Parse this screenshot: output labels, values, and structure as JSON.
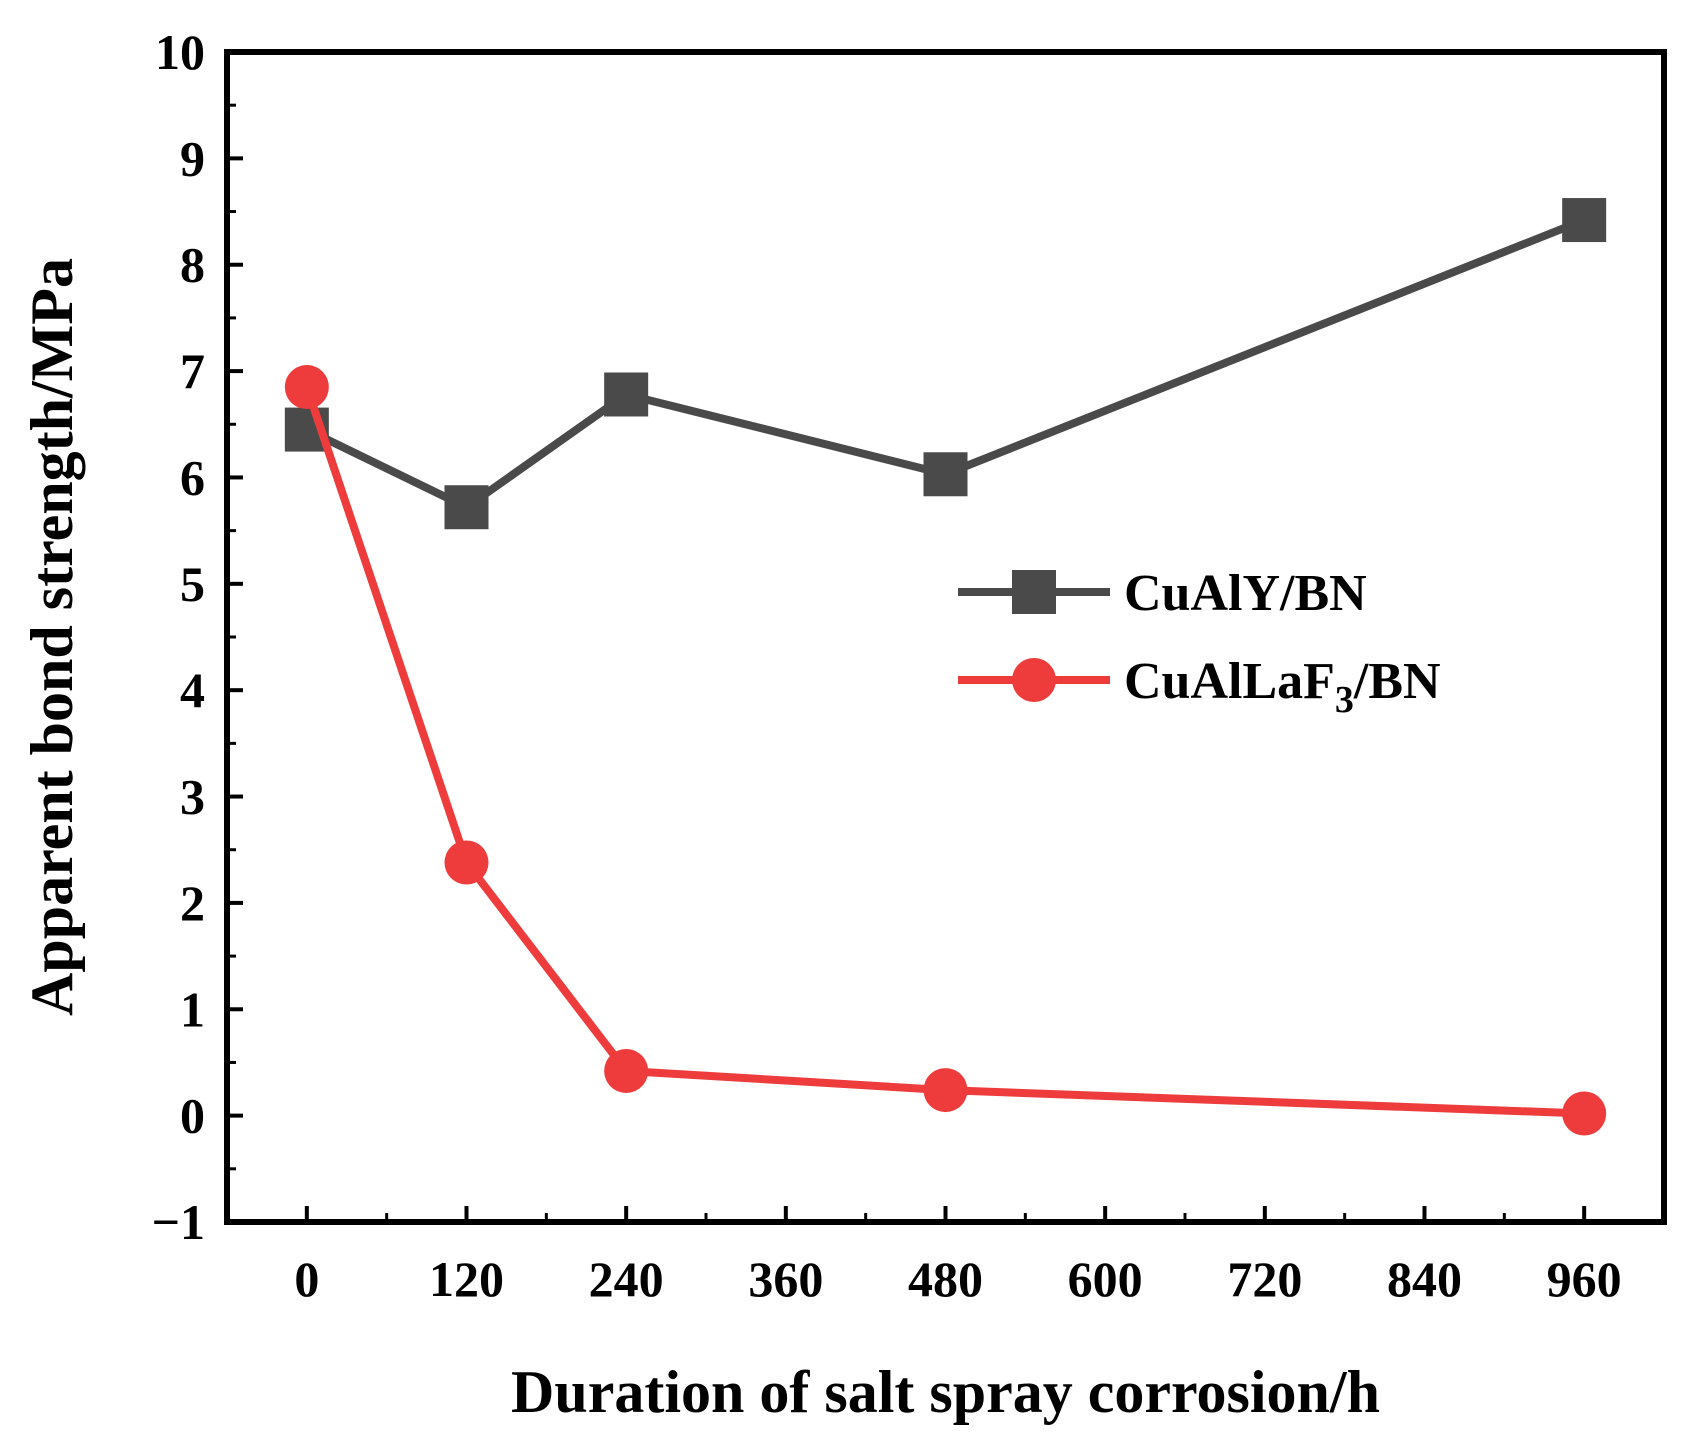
{
  "chart_data": {
    "type": "line",
    "x": [
      0,
      120,
      240,
      480,
      960
    ],
    "xlabel": "Duration of salt spray corrosion/h",
    "ylabel": "Apparent bond strength/MPa",
    "xlim": [
      -60,
      1020
    ],
    "ylim": [
      -1,
      10
    ],
    "xticks": [
      0,
      120,
      240,
      360,
      480,
      600,
      720,
      840,
      960
    ],
    "xtick_labels": [
      "0",
      "120",
      "240",
      "360",
      "480",
      "600",
      "720",
      "840",
      "960"
    ],
    "yticks": [
      -1,
      0,
      1,
      2,
      3,
      4,
      5,
      6,
      7,
      8,
      9,
      10
    ],
    "ytick_labels": [
      "−1",
      "0",
      "1",
      "2",
      "3",
      "4",
      "5",
      "6",
      "7",
      "8",
      "9",
      "10"
    ],
    "grid": false,
    "legend_position": "right",
    "series": [
      {
        "name": "CuAlY/BN",
        "name_parts": {
          "base": "CuAlY/BN",
          "sub": "",
          "tail": ""
        },
        "values": [
          6.45,
          5.72,
          6.78,
          6.03,
          8.42
        ],
        "color": "#4a4a4a",
        "marker": "square"
      },
      {
        "name": "CuAlLaF3/BN",
        "name_parts": {
          "base": "CuAlLaF",
          "sub": "3",
          "tail": "/BN"
        },
        "values": [
          6.85,
          2.38,
          0.42,
          0.24,
          0.02
        ],
        "color": "#ee3b3b",
        "marker": "circle"
      }
    ]
  }
}
